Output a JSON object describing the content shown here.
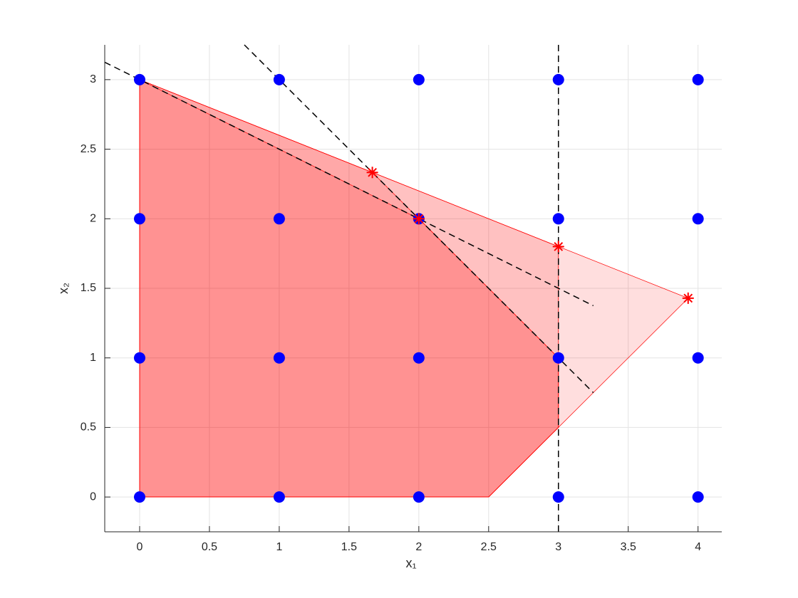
{
  "chart_data": {
    "type": "scatter",
    "xlabel": "x₁",
    "ylabel": "x₂",
    "xlim": [
      -0.25,
      4.17
    ],
    "ylim": [
      -0.25,
      3.25
    ],
    "xticks": [
      0,
      0.5,
      1,
      1.5,
      2,
      2.5,
      3,
      3.5,
      4
    ],
    "yticks": [
      0,
      0.5,
      1,
      1.5,
      2,
      2.5,
      3
    ],
    "grid": true,
    "polygon_color": "#ff0000",
    "polygons": [
      {
        "x": [
          0,
          2.5,
          3,
          3.929,
          0
        ],
        "y": [
          0,
          0,
          0.5,
          1.429,
          3
        ]
      },
      {
        "x": [
          0,
          2.5,
          3,
          3,
          0
        ],
        "y": [
          0,
          0,
          0.5,
          1.8,
          3
        ]
      },
      {
        "x": [
          0,
          2.5,
          3,
          3,
          1.667,
          0
        ],
        "y": [
          0,
          0,
          0.5,
          1,
          2.333,
          3
        ]
      },
      {
        "x": [
          0,
          2.5,
          3,
          3,
          2,
          0
        ],
        "y": [
          0,
          0,
          0.5,
          1,
          2,
          3
        ]
      }
    ],
    "line_color": "#000000",
    "lines": [
      {
        "x": [
          3,
          3
        ],
        "y": [
          -0.25,
          3.25
        ]
      },
      {
        "x": [
          0.75,
          3.25
        ],
        "y": [
          3.25,
          0.75
        ]
      },
      {
        "x": [
          -0.25,
          3.25
        ],
        "y": [
          3.125,
          1.375
        ]
      }
    ],
    "series": [
      {
        "color": "#0000ff",
        "marker": "circle",
        "x": [
          0,
          1,
          2,
          3,
          4,
          0,
          1,
          2,
          3,
          4,
          0,
          1,
          2,
          3,
          4,
          0,
          1,
          2,
          3,
          4
        ],
        "y": [
          0,
          0,
          0,
          0,
          0,
          1,
          1,
          1,
          1,
          1,
          2,
          2,
          2,
          2,
          2,
          3,
          3,
          3,
          3,
          3
        ]
      },
      {
        "color": "#ff0000",
        "marker": "star",
        "x": [
          1.667,
          3,
          3.929,
          2
        ],
        "y": [
          2.333,
          1.8,
          1.429,
          2
        ]
      }
    ]
  }
}
